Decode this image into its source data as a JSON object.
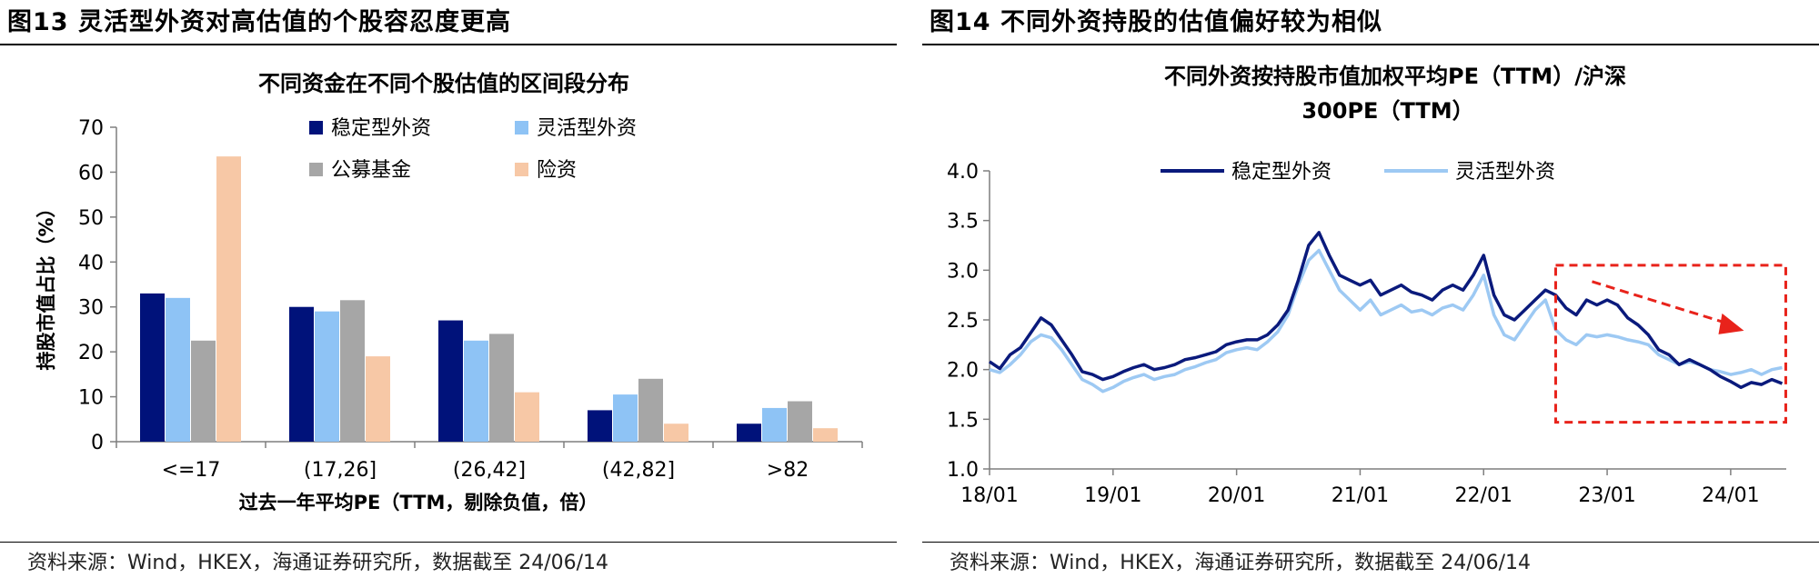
{
  "left": {
    "figure_title": "图13 灵活型外资对高估值的个股容忍度更高",
    "source": "资料来源：Wind，HKEX，海通证券研究所，数据截至 24/06/14"
  },
  "right": {
    "figure_title": "图14 不同外资持股的估值偏好较为相似",
    "source": "资料来源：Wind，HKEX，海通证券研究所，数据截至 24/06/14"
  },
  "chart_data": [
    {
      "type": "bar",
      "title": "不同资金在不同个股估值的区间段分布",
      "xlabel": "过去一年平均PE（TTM，剔除负值，倍）",
      "ylabel": "持股市值占比（%）",
      "ylim": [
        0,
        70
      ],
      "yticks": [
        "0",
        "10",
        "20",
        "30",
        "40",
        "50",
        "60",
        "70"
      ],
      "categories": [
        "<=17",
        "(17,26]",
        "(26,42]",
        "(42,82]",
        ">82"
      ],
      "series": [
        {
          "name": "稳定型外资",
          "color": "#00127a",
          "values": [
            33,
            30,
            27,
            7,
            4
          ]
        },
        {
          "name": "灵活型外资",
          "color": "#8ec3f5",
          "values": [
            32,
            29,
            22.5,
            10.5,
            7.5
          ]
        },
        {
          "name": "公募基金",
          "color": "#a6a6a6",
          "values": [
            22.5,
            31.5,
            24,
            14,
            9
          ]
        },
        {
          "name": "险资",
          "color": "#f7c8a6",
          "values": [
            63.5,
            19,
            11,
            4,
            3
          ]
        }
      ],
      "legend_position": "top-right, 2x2",
      "grid": false
    },
    {
      "type": "line",
      "title_line1": "不同外资按持股市值加权平均PE（TTM）/沪深",
      "title_line2": "300PE（TTM）",
      "ylim": [
        1.0,
        4.0
      ],
      "yticks": [
        "1.0",
        "1.5",
        "2.0",
        "2.5",
        "3.0",
        "3.5",
        "4.0"
      ],
      "xticks": [
        "18/01",
        "19/01",
        "20/01",
        "21/01",
        "22/01",
        "23/01",
        "24/01"
      ],
      "xrange": [
        "2018-01",
        "2024-06"
      ],
      "legend_position": "top-center",
      "grid": false,
      "annotation": {
        "type": "dashed-rectangle-with-down-arrow",
        "color": "#e8231b",
        "x_from": "2022-08",
        "x_to": "2024-06",
        "y_from": 1.47,
        "y_to": 3.05
      },
      "series": [
        {
          "name": "稳定型外资",
          "color": "#0a1a7c",
          "points": [
            [
              "2018-01",
              2.08
            ],
            [
              "2018-02",
              2.01
            ],
            [
              "2018-03",
              2.15
            ],
            [
              "2018-04",
              2.22
            ],
            [
              "2018-05",
              2.37
            ],
            [
              "2018-06",
              2.52
            ],
            [
              "2018-07",
              2.45
            ],
            [
              "2018-08",
              2.3
            ],
            [
              "2018-09",
              2.15
            ],
            [
              "2018-10",
              1.98
            ],
            [
              "2018-11",
              1.95
            ],
            [
              "2018-12",
              1.9
            ],
            [
              "2019-01",
              1.93
            ],
            [
              "2019-02",
              1.98
            ],
            [
              "2019-03",
              2.02
            ],
            [
              "2019-04",
              2.05
            ],
            [
              "2019-05",
              2.0
            ],
            [
              "2019-06",
              2.02
            ],
            [
              "2019-07",
              2.05
            ],
            [
              "2019-08",
              2.1
            ],
            [
              "2019-09",
              2.12
            ],
            [
              "2019-10",
              2.15
            ],
            [
              "2019-11",
              2.18
            ],
            [
              "2019-12",
              2.25
            ],
            [
              "2020-01",
              2.28
            ],
            [
              "2020-02",
              2.3
            ],
            [
              "2020-03",
              2.3
            ],
            [
              "2020-04",
              2.35
            ],
            [
              "2020-05",
              2.45
            ],
            [
              "2020-06",
              2.6
            ],
            [
              "2020-07",
              2.9
            ],
            [
              "2020-08",
              3.25
            ],
            [
              "2020-09",
              3.38
            ],
            [
              "2020-10",
              3.15
            ],
            [
              "2020-11",
              2.95
            ],
            [
              "2020-12",
              2.9
            ],
            [
              "2021-01",
              2.85
            ],
            [
              "2021-02",
              2.9
            ],
            [
              "2021-03",
              2.75
            ],
            [
              "2021-04",
              2.8
            ],
            [
              "2021-05",
              2.85
            ],
            [
              "2021-06",
              2.78
            ],
            [
              "2021-07",
              2.75
            ],
            [
              "2021-08",
              2.7
            ],
            [
              "2021-09",
              2.8
            ],
            [
              "2021-10",
              2.85
            ],
            [
              "2021-11",
              2.8
            ],
            [
              "2021-12",
              2.95
            ],
            [
              "2022-01",
              3.15
            ],
            [
              "2022-02",
              2.75
            ],
            [
              "2022-03",
              2.55
            ],
            [
              "2022-04",
              2.5
            ],
            [
              "2022-05",
              2.6
            ],
            [
              "2022-06",
              2.7
            ],
            [
              "2022-07",
              2.8
            ],
            [
              "2022-08",
              2.75
            ],
            [
              "2022-09",
              2.62
            ],
            [
              "2022-10",
              2.55
            ],
            [
              "2022-11",
              2.7
            ],
            [
              "2022-12",
              2.65
            ],
            [
              "2023-01",
              2.7
            ],
            [
              "2023-02",
              2.65
            ],
            [
              "2023-03",
              2.52
            ],
            [
              "2023-04",
              2.45
            ],
            [
              "2023-05",
              2.35
            ],
            [
              "2023-06",
              2.2
            ],
            [
              "2023-07",
              2.15
            ],
            [
              "2023-08",
              2.05
            ],
            [
              "2023-09",
              2.1
            ],
            [
              "2023-10",
              2.05
            ],
            [
              "2023-11",
              2.0
            ],
            [
              "2023-12",
              1.93
            ],
            [
              "2024-01",
              1.88
            ],
            [
              "2024-02",
              1.82
            ],
            [
              "2024-03",
              1.87
            ],
            [
              "2024-04",
              1.85
            ],
            [
              "2024-05",
              1.9
            ],
            [
              "2024-06",
              1.86
            ]
          ]
        },
        {
          "name": "灵活型外资",
          "color": "#9dc9f3",
          "points": [
            [
              "2018-01",
              2.0
            ],
            [
              "2018-02",
              1.97
            ],
            [
              "2018-03",
              2.05
            ],
            [
              "2018-04",
              2.15
            ],
            [
              "2018-05",
              2.28
            ],
            [
              "2018-06",
              2.35
            ],
            [
              "2018-07",
              2.32
            ],
            [
              "2018-08",
              2.2
            ],
            [
              "2018-09",
              2.05
            ],
            [
              "2018-10",
              1.9
            ],
            [
              "2018-11",
              1.85
            ],
            [
              "2018-12",
              1.78
            ],
            [
              "2019-01",
              1.82
            ],
            [
              "2019-02",
              1.88
            ],
            [
              "2019-03",
              1.92
            ],
            [
              "2019-04",
              1.95
            ],
            [
              "2019-05",
              1.9
            ],
            [
              "2019-06",
              1.93
            ],
            [
              "2019-07",
              1.95
            ],
            [
              "2019-08",
              2.0
            ],
            [
              "2019-09",
              2.03
            ],
            [
              "2019-10",
              2.07
            ],
            [
              "2019-11",
              2.1
            ],
            [
              "2019-12",
              2.17
            ],
            [
              "2020-01",
              2.2
            ],
            [
              "2020-02",
              2.22
            ],
            [
              "2020-03",
              2.2
            ],
            [
              "2020-04",
              2.28
            ],
            [
              "2020-05",
              2.38
            ],
            [
              "2020-06",
              2.55
            ],
            [
              "2020-07",
              2.85
            ],
            [
              "2020-08",
              3.1
            ],
            [
              "2020-09",
              3.2
            ],
            [
              "2020-10",
              3.0
            ],
            [
              "2020-11",
              2.8
            ],
            [
              "2020-12",
              2.7
            ],
            [
              "2021-01",
              2.6
            ],
            [
              "2021-02",
              2.7
            ],
            [
              "2021-03",
              2.55
            ],
            [
              "2021-04",
              2.6
            ],
            [
              "2021-05",
              2.65
            ],
            [
              "2021-06",
              2.58
            ],
            [
              "2021-07",
              2.6
            ],
            [
              "2021-08",
              2.55
            ],
            [
              "2021-09",
              2.62
            ],
            [
              "2021-10",
              2.65
            ],
            [
              "2021-11",
              2.6
            ],
            [
              "2021-12",
              2.75
            ],
            [
              "2022-01",
              2.95
            ],
            [
              "2022-02",
              2.55
            ],
            [
              "2022-03",
              2.35
            ],
            [
              "2022-04",
              2.3
            ],
            [
              "2022-05",
              2.45
            ],
            [
              "2022-06",
              2.6
            ],
            [
              "2022-07",
              2.7
            ],
            [
              "2022-08",
              2.4
            ],
            [
              "2022-09",
              2.3
            ],
            [
              "2022-10",
              2.25
            ],
            [
              "2022-11",
              2.35
            ],
            [
              "2022-12",
              2.33
            ],
            [
              "2023-01",
              2.35
            ],
            [
              "2023-02",
              2.33
            ],
            [
              "2023-03",
              2.3
            ],
            [
              "2023-04",
              2.28
            ],
            [
              "2023-05",
              2.25
            ],
            [
              "2023-06",
              2.15
            ],
            [
              "2023-07",
              2.1
            ],
            [
              "2023-08",
              2.05
            ],
            [
              "2023-09",
              2.08
            ],
            [
              "2023-10",
              2.05
            ],
            [
              "2023-11",
              2.0
            ],
            [
              "2023-12",
              1.98
            ],
            [
              "2024-01",
              1.95
            ],
            [
              "2024-02",
              1.97
            ],
            [
              "2024-03",
              2.0
            ],
            [
              "2024-04",
              1.95
            ],
            [
              "2024-05",
              2.0
            ],
            [
              "2024-06",
              2.02
            ]
          ]
        }
      ]
    }
  ]
}
